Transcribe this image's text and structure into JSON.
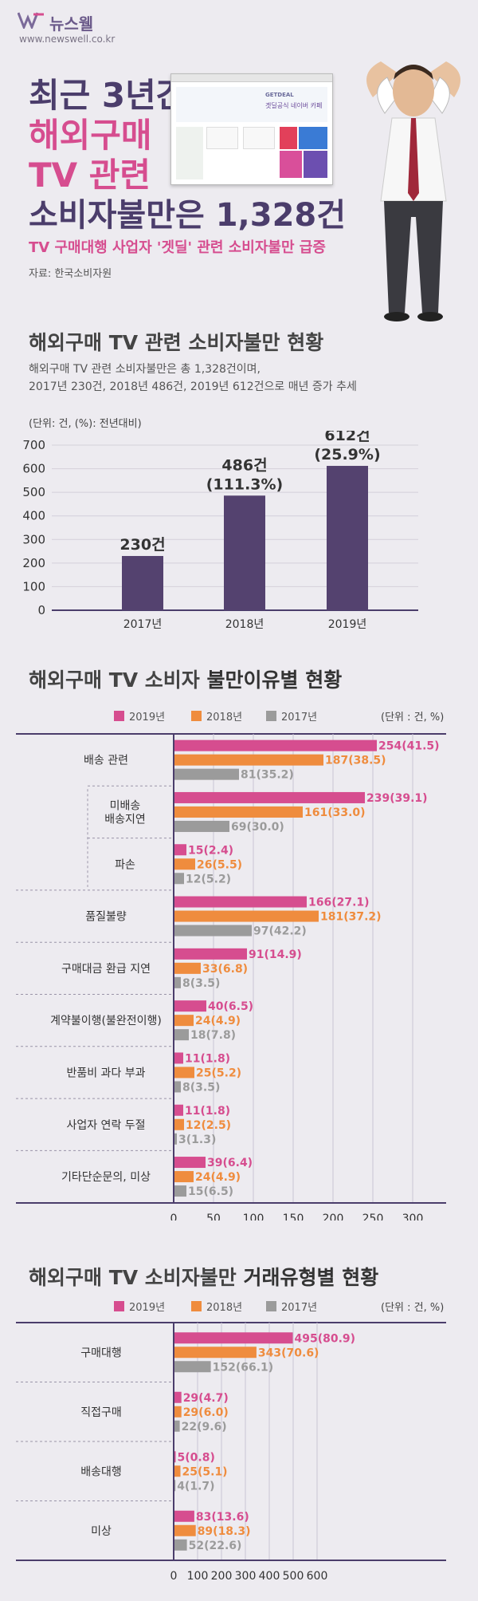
{
  "header": {
    "logo_name": "뉴스웰",
    "logo_url": "www.newswell.co.kr",
    "title_line1": "최근 3년간",
    "title_line2": "해외구매",
    "title_line3": "TV 관련",
    "title_line4": "소비자불만은 1,328건",
    "subtitle": "TV 구매대행 사업자 '겟딜' 관련 소비자불만 급증",
    "source": "자료: 한국소비자원",
    "screenshot_brand": "GETDEAL",
    "screenshot_caption": "겟딜공식 네이버 카페"
  },
  "colors": {
    "y2019": "#d64d8f",
    "y2018": "#ef8c3e",
    "y2017": "#9b9b9b",
    "bar_main": "#54426f",
    "accent": "#d64d8f"
  },
  "section1": {
    "title": "해외구매 TV 관련 소비자불만 현황",
    "desc_line1": "해외구매 TV 관련 소비자불만은 총 1,328건이며,",
    "desc_line2": "2017년 230건, 2018년 486건, 2019년 612건으로 매년 증가 추세",
    "unit": "(단위: 건, (%): 전년대비)"
  },
  "section2": {
    "title_a": "해외구매 TV 소비자 ",
    "title_b": "불만이유별 현황",
    "unit": "(단위 : 건, %)"
  },
  "section3": {
    "title_a": "해외구매 TV 소비자불만 ",
    "title_b": "거래유형별 현황",
    "unit": "(단위 : 건, %)"
  },
  "chart_data": [
    {
      "type": "bar",
      "categories": [
        "2017년",
        "2018년",
        "2019년"
      ],
      "values": [
        230,
        486,
        612
      ],
      "labels_top": [
        "230건",
        "486건",
        "612건"
      ],
      "labels_pct": [
        "",
        "(111.3%)",
        "(25.9%)"
      ],
      "ylim": [
        0,
        700
      ],
      "yticks": [
        "0",
        "100",
        "200",
        "300",
        "400",
        "500",
        "600",
        "700"
      ]
    },
    {
      "type": "bar",
      "orientation": "horizontal",
      "legend": [
        "2019년",
        "2018년",
        "2017년"
      ],
      "xlim": [
        0,
        300
      ],
      "xticks": [
        "0",
        "50",
        "100",
        "150",
        "200",
        "250",
        "300"
      ],
      "categories": [
        {
          "label": [
            "배송 관련"
          ],
          "sub": false,
          "values": [
            254,
            187,
            81
          ],
          "labels": [
            "254(41.5)",
            "187(38.5)",
            "81(35.2)"
          ]
        },
        {
          "label": [
            "미배송",
            "배송지연"
          ],
          "sub": true,
          "values": [
            239,
            161,
            69
          ],
          "labels": [
            "239(39.1)",
            "161(33.0)",
            "69(30.0)"
          ]
        },
        {
          "label": [
            "파손"
          ],
          "sub": true,
          "values": [
            15,
            26,
            12
          ],
          "labels": [
            "15(2.4)",
            "26(5.5)",
            "12(5.2)"
          ]
        },
        {
          "label": [
            "품질불량"
          ],
          "sub": false,
          "values": [
            166,
            181,
            97
          ],
          "labels": [
            "166(27.1)",
            "181(37.2)",
            "97(42.2)"
          ]
        },
        {
          "label": [
            "구매대금 환급 지연"
          ],
          "sub": false,
          "values": [
            91,
            33,
            8
          ],
          "labels": [
            "91(14.9)",
            "33(6.8)",
            "8(3.5)"
          ]
        },
        {
          "label": [
            "계약불이행(불완전이행)"
          ],
          "sub": false,
          "values": [
            40,
            24,
            18
          ],
          "labels": [
            "40(6.5)",
            "24(4.9)",
            "18(7.8)"
          ]
        },
        {
          "label": [
            "반품비 과다 부과"
          ],
          "sub": false,
          "values": [
            11,
            25,
            8
          ],
          "labels": [
            "11(1.8)",
            "25(5.2)",
            "8(3.5)"
          ]
        },
        {
          "label": [
            "사업자 연락 두절"
          ],
          "sub": false,
          "values": [
            11,
            12,
            3
          ],
          "labels": [
            "11(1.8)",
            "12(2.5)",
            "3(1.3)"
          ]
        },
        {
          "label": [
            "기타단순문의, 미상"
          ],
          "sub": false,
          "values": [
            39,
            24,
            15
          ],
          "labels": [
            "39(6.4)",
            "24(4.9)",
            "15(6.5)"
          ]
        }
      ]
    },
    {
      "type": "bar",
      "orientation": "horizontal",
      "legend": [
        "2019년",
        "2018년",
        "2017년"
      ],
      "xlim": [
        0,
        600
      ],
      "xticks": [
        "0",
        "100",
        "200",
        "300",
        "400",
        "500",
        "600"
      ],
      "categories": [
        {
          "label": [
            "구매대행"
          ],
          "values": [
            495,
            343,
            152
          ],
          "labels": [
            "495(80.9)",
            "343(70.6)",
            "152(66.1)"
          ]
        },
        {
          "label": [
            "직접구매"
          ],
          "values": [
            29,
            29,
            22
          ],
          "labels": [
            "29(4.7)",
            "29(6.0)",
            "22(9.6)"
          ]
        },
        {
          "label": [
            "배송대행"
          ],
          "values": [
            5,
            25,
            4
          ],
          "labels": [
            "5(0.8)",
            "25(5.1)",
            "4(1.7)"
          ]
        },
        {
          "label": [
            "미상"
          ],
          "values": [
            83,
            89,
            52
          ],
          "labels": [
            "83(13.6)",
            "89(18.3)",
            "52(22.6)"
          ]
        }
      ]
    }
  ]
}
